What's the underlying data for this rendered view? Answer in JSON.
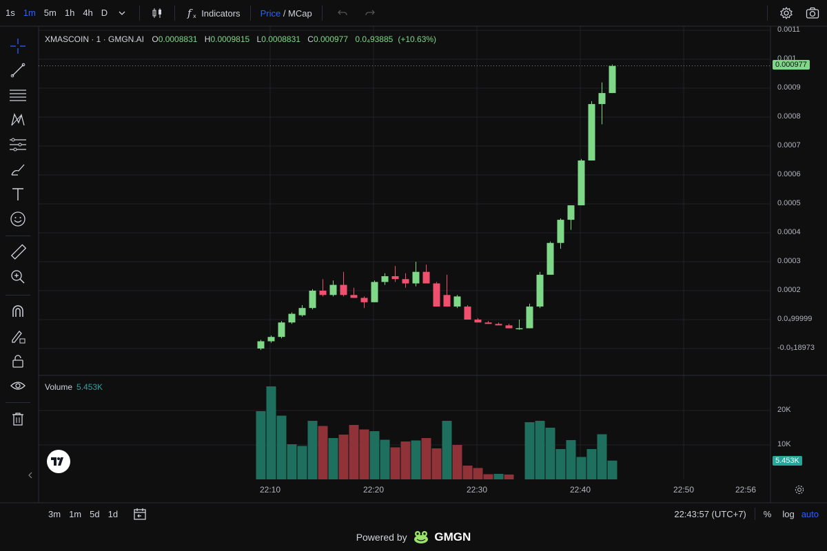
{
  "toolbar": {
    "timeframes": [
      "1s",
      "1m",
      "5m",
      "1h",
      "4h",
      "D"
    ],
    "active_timeframe": "1m",
    "indicators_label": "Indicators",
    "price_label": "Price",
    "mcap_label": "/ MCap"
  },
  "legend": {
    "symbol": "XMASCOIN · 1 · GMGN.AI",
    "open_key": "O",
    "open": "0.0008831",
    "high_key": "H",
    "high": "0.0009815",
    "low_key": "L",
    "low": "0.0008831",
    "close_key": "C",
    "close": "0.000977",
    "change": "0.0₄93885",
    "change_pct": "(+10.63%)"
  },
  "volume_legend": {
    "label": "Volume",
    "value": "5.453K"
  },
  "price_axis": {
    "ticks": [
      "0.0011",
      "0.001",
      "0.0009",
      "0.0008",
      "0.0007",
      "0.0006",
      "0.0005",
      "0.0004",
      "0.0003",
      "0.0002",
      "0.0₄99999",
      "-0.0₅18973"
    ],
    "last_price": "0.000977"
  },
  "volume_axis": {
    "ticks": [
      "20K",
      "10K"
    ],
    "last_volume": "5.453K"
  },
  "time_axis": {
    "ticks": [
      "22:10",
      "22:20",
      "22:30",
      "22:40",
      "22:50",
      "22:56"
    ]
  },
  "bottom": {
    "ranges": [
      "3m",
      "1m",
      "5d",
      "1d"
    ],
    "clock": "22:43:57 (UTC+7)",
    "percent_label": "%",
    "log_label": "log",
    "auto_label": "auto"
  },
  "footer": {
    "powered_by": "Powered by",
    "brand": "GMGN"
  },
  "colors": {
    "up": "#7fd888",
    "down": "#f0506e",
    "vol_up": "#1f6f5f",
    "vol_down": "#8f3338",
    "accent": "#2962ff"
  },
  "chart_data": {
    "type": "candlestick",
    "symbol": "XMASCOIN",
    "interval": "1m",
    "candles": [
      {
        "t": "22:10",
        "o": 0.0,
        "h": 3e-05,
        "l": -5e-06,
        "c": 2.5e-05
      },
      {
        "t": "22:11",
        "o": 2.5e-05,
        "h": 4.5e-05,
        "l": 2e-05,
        "c": 4e-05
      },
      {
        "t": "22:12",
        "o": 4e-05,
        "h": 9.5e-05,
        "l": 3.5e-05,
        "c": 9e-05
      },
      {
        "t": "22:13",
        "o": 9e-05,
        "h": 0.000125,
        "l": 8.5e-05,
        "c": 0.00012
      },
      {
        "t": "22:14",
        "o": 0.000115,
        "h": 0.00015,
        "l": 0.00011,
        "c": 0.00014
      },
      {
        "t": "22:15",
        "o": 0.00014,
        "h": 0.000205,
        "l": 0.000135,
        "c": 0.0002
      },
      {
        "t": "22:16",
        "o": 0.0002,
        "h": 0.00024,
        "l": 0.00018,
        "c": 0.000185
      },
      {
        "t": "22:17",
        "o": 0.000185,
        "h": 0.000235,
        "l": 0.00018,
        "c": 0.00022
      },
      {
        "t": "22:18",
        "o": 0.00022,
        "h": 0.000265,
        "l": 0.00018,
        "c": 0.000185
      },
      {
        "t": "22:19",
        "o": 0.000185,
        "h": 0.00021,
        "l": 0.00018,
        "c": 0.000175
      },
      {
        "t": "22:20",
        "o": 0.000175,
        "h": 0.00018,
        "l": 0.00014,
        "c": 0.00016
      },
      {
        "t": "22:21",
        "o": 0.00016,
        "h": 0.000235,
        "l": 0.00016,
        "c": 0.00023
      },
      {
        "t": "22:22",
        "o": 0.00023,
        "h": 0.00026,
        "l": 0.00022,
        "c": 0.00025
      },
      {
        "t": "22:23",
        "o": 0.00025,
        "h": 0.000285,
        "l": 0.00023,
        "c": 0.00024
      },
      {
        "t": "22:24",
        "o": 0.00024,
        "h": 0.00026,
        "l": 0.00021,
        "c": 0.000225
      },
      {
        "t": "22:25",
        "o": 0.000225,
        "h": 0.0003,
        "l": 0.000215,
        "c": 0.000265
      },
      {
        "t": "22:26",
        "o": 0.000265,
        "h": 0.00029,
        "l": 0.000225,
        "c": 0.000225
      },
      {
        "t": "22:27",
        "o": 0.000225,
        "h": 0.00023,
        "l": 0.000145,
        "c": 0.000145
      },
      {
        "t": "22:28",
        "o": 0.000185,
        "h": 0.000255,
        "l": 0.000145,
        "c": 0.000145
      },
      {
        "t": "22:29",
        "o": 0.000145,
        "h": 0.000185,
        "l": 0.00014,
        "c": 0.00018
      },
      {
        "t": "22:30",
        "o": 0.000145,
        "h": 0.00015,
        "l": 0.0001,
        "c": 0.0001
      },
      {
        "t": "22:31",
        "o": 0.0001,
        "h": 0.000105,
        "l": 9e-05,
        "c": 9e-05
      },
      {
        "t": "22:32",
        "o": 9e-05,
        "h": 9.5e-05,
        "l": 8.5e-05,
        "c": 8.5e-05
      },
      {
        "t": "22:33",
        "o": 8.5e-05,
        "h": 9e-05,
        "l": 8e-05,
        "c": 8e-05
      },
      {
        "t": "22:34",
        "o": 8e-05,
        "h": 8.5e-05,
        "l": 7e-05,
        "c": 7e-05
      },
      {
        "t": "22:35",
        "o": 7e-05,
        "h": 0.0001,
        "l": 6.5e-05,
        "c": 7e-05
      },
      {
        "t": "22:36",
        "o": 7e-05,
        "h": 0.000155,
        "l": 7e-05,
        "c": 0.000145
      },
      {
        "t": "22:37",
        "o": 0.000145,
        "h": 0.000265,
        "l": 0.00014,
        "c": 0.000255
      },
      {
        "t": "22:38",
        "o": 0.000255,
        "h": 0.00037,
        "l": 0.000255,
        "c": 0.000365
      },
      {
        "t": "22:39",
        "o": 0.000365,
        "h": 0.00045,
        "l": 0.000345,
        "c": 0.000445
      },
      {
        "t": "22:40",
        "o": 0.000445,
        "h": 0.000495,
        "l": 0.00041,
        "c": 0.000495
      },
      {
        "t": "22:41",
        "o": 0.000495,
        "h": 0.000655,
        "l": 0.000495,
        "c": 0.00065
      },
      {
        "t": "22:42",
        "o": 0.00065,
        "h": 0.000855,
        "l": 0.00065,
        "c": 0.000845
      },
      {
        "t": "22:43",
        "o": 0.000845,
        "h": 0.00092,
        "l": 0.000775,
        "c": 0.0008831
      },
      {
        "t": "22:44",
        "o": 0.0008831,
        "h": 0.0009815,
        "l": 0.0008831,
        "c": 0.000977
      }
    ],
    "volume": [
      19800,
      27000,
      18500,
      10200,
      9700,
      17000,
      15500,
      12000,
      13000,
      15800,
      14500,
      14000,
      11500,
      9300,
      11000,
      11300,
      12000,
      9000,
      17000,
      10000,
      4000,
      3300,
      1500,
      1600,
      1400,
      0,
      16600,
      17000,
      15000,
      8800,
      11400,
      6500,
      8800,
      13100,
      5453
    ],
    "volume_up": [
      true,
      true,
      true,
      true,
      true,
      true,
      false,
      true,
      false,
      false,
      false,
      true,
      true,
      false,
      false,
      true,
      false,
      false,
      true,
      false,
      false,
      false,
      false,
      true,
      false,
      true,
      true,
      true,
      true,
      true,
      true,
      true,
      true,
      true,
      true
    ],
    "price_range": [
      -2e-05,
      0.0011
    ],
    "volume_range": [
      0,
      30000
    ],
    "grid": true
  }
}
